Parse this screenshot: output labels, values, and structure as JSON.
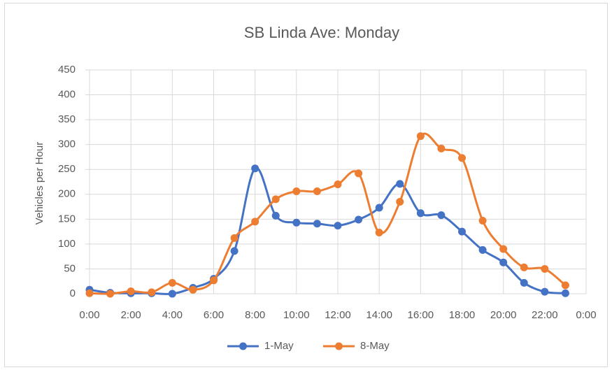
{
  "chart_data": {
    "type": "line",
    "title": "SB Linda Ave: Monday",
    "y_label": "Vehicles per Hour",
    "x": [
      0,
      1,
      2,
      3,
      4,
      5,
      6,
      7,
      8,
      9,
      10,
      11,
      12,
      13,
      14,
      15,
      16,
      17,
      18,
      19,
      20,
      21,
      22,
      23
    ],
    "xlim": [
      0,
      24
    ],
    "xticks": [
      {
        "value": 0,
        "label": "0:00"
      },
      {
        "value": 2,
        "label": "2:00"
      },
      {
        "value": 4,
        "label": "4:00"
      },
      {
        "value": 6,
        "label": "6:00"
      },
      {
        "value": 8,
        "label": "8:00"
      },
      {
        "value": 10,
        "label": "10:00"
      },
      {
        "value": 12,
        "label": "12:00"
      },
      {
        "value": 14,
        "label": "14:00"
      },
      {
        "value": 16,
        "label": "16:00"
      },
      {
        "value": 18,
        "label": "18:00"
      },
      {
        "value": 20,
        "label": "20:00"
      },
      {
        "value": 22,
        "label": "22:00"
      },
      {
        "value": 24,
        "label": "0:00"
      }
    ],
    "ylim": [
      0,
      450
    ],
    "yticks": [
      0,
      50,
      100,
      150,
      200,
      250,
      300,
      350,
      400,
      450
    ],
    "grid": true,
    "smooth": true,
    "legend": "bottom",
    "series": [
      {
        "name": "1-May",
        "color": "#4472c4",
        "values": [
          8,
          2,
          1,
          1,
          0,
          12,
          30,
          86,
          252,
          157,
          143,
          141,
          137,
          149,
          173,
          221,
          162,
          158,
          125,
          88,
          63,
          22,
          4,
          1
        ]
      },
      {
        "name": "8-May",
        "color": "#ed7d31",
        "values": [
          1,
          0,
          5,
          3,
          22,
          8,
          27,
          112,
          145,
          190,
          206,
          206,
          220,
          242,
          123,
          185,
          317,
          292,
          273,
          147,
          90,
          53,
          50,
          17
        ]
      }
    ]
  }
}
